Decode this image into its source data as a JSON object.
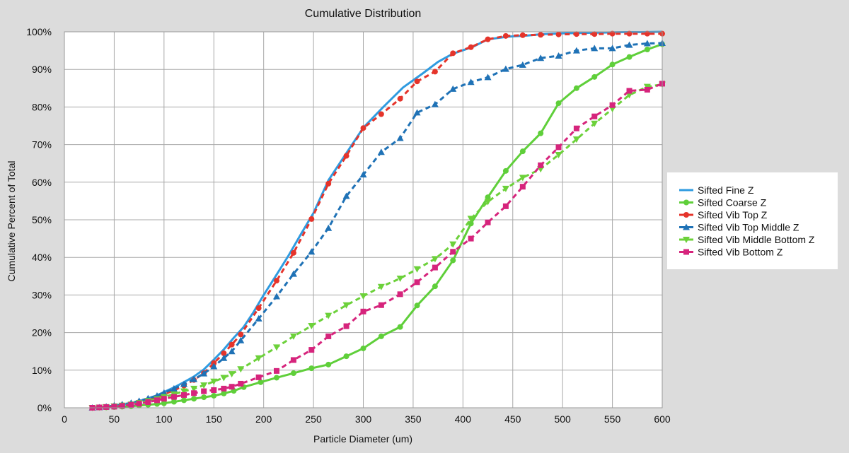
{
  "chart_data": {
    "type": "line",
    "title": "Cumulative Distribution",
    "xlabel": "Particle Diameter (um)",
    "ylabel": "Cumulative Percent of Total",
    "xlim": [
      0,
      600
    ],
    "ylim": [
      0,
      100
    ],
    "x_ticks": [
      0,
      50,
      100,
      150,
      200,
      250,
      300,
      350,
      400,
      450,
      500,
      550,
      600
    ],
    "x_tick_labels": [
      "0",
      "50",
      "100",
      "150",
      "200",
      "250",
      "300",
      "350",
      "400",
      "450",
      "500",
      "550",
      "600"
    ],
    "y_ticks": [
      0,
      10,
      20,
      30,
      40,
      50,
      60,
      70,
      80,
      90,
      100
    ],
    "y_tick_labels": [
      "0%",
      "10%",
      "20%",
      "30%",
      "40%",
      "50%",
      "60%",
      "70%",
      "80%",
      "90%",
      "100%"
    ],
    "grid": true,
    "legend_position": "right",
    "series": [
      {
        "name": "Sifted Fine Z",
        "color": "#2f9be0",
        "line_style": "solid",
        "marker": "none",
        "x": [
          28,
          35,
          42,
          50,
          58,
          67,
          75,
          84,
          93,
          100,
          110,
          120,
          130,
          140,
          150,
          160,
          170,
          180,
          190,
          200,
          212,
          225,
          237,
          250,
          265,
          280,
          300,
          320,
          340,
          360,
          375,
          390,
          410,
          425,
          445,
          465,
          480,
          500,
          520,
          540,
          560,
          580,
          600
        ],
        "y": [
          0,
          0.1,
          0.3,
          0.5,
          0.8,
          1.2,
          1.8,
          2.5,
          3.3,
          4.2,
          5.4,
          6.8,
          8.3,
          10.2,
          12.8,
          15.5,
          18.6,
          21.5,
          25.5,
          30,
          35,
          40.5,
          46,
          51.8,
          60.5,
          66.5,
          74.5,
          80,
          85.2,
          89,
          92,
          94.2,
          96,
          98,
          98.7,
          99,
          99.4,
          99.6,
          99.7,
          99.8,
          99.9,
          99.9,
          100
        ]
      },
      {
        "name": "Sifted Coarse Z",
        "color": "#5fcf3a",
        "line_style": "solid",
        "marker": "circle",
        "x": [
          28,
          35,
          42,
          50,
          58,
          67,
          75,
          84,
          93,
          100,
          110,
          120,
          130,
          140,
          150,
          160,
          170,
          180,
          197,
          213,
          230,
          248,
          265,
          283,
          300,
          318,
          337,
          354,
          372,
          390,
          408,
          425,
          443,
          460,
          478,
          496,
          514,
          532,
          550,
          567,
          585,
          600
        ],
        "y": [
          0,
          0.1,
          0.1,
          0.2,
          0.3,
          0.4,
          0.6,
          0.8,
          1,
          1.2,
          1.6,
          2,
          2.4,
          2.8,
          3.2,
          3.8,
          4.5,
          5.5,
          6.8,
          8,
          9.2,
          10.5,
          11.5,
          13.7,
          15.8,
          19,
          21.5,
          27.2,
          32.3,
          39.2,
          49,
          56,
          63,
          68.2,
          73,
          81,
          85,
          88,
          91.3,
          93.3,
          95.3,
          96.7
        ]
      },
      {
        "name": "Sifted Vib Top Z",
        "color": "#e5342b",
        "line_style": "dashed",
        "marker": "circle",
        "x": [
          28,
          35,
          42,
          50,
          58,
          67,
          75,
          84,
          93,
          100,
          110,
          120,
          130,
          140,
          150,
          160,
          168,
          177,
          195,
          213,
          230,
          248,
          265,
          283,
          300,
          318,
          337,
          354,
          372,
          390,
          408,
          425,
          443,
          460,
          478,
          496,
          514,
          532,
          550,
          567,
          585,
          600
        ],
        "y": [
          0,
          0.1,
          0.2,
          0.4,
          0.7,
          1,
          1.5,
          2.1,
          2.8,
          3.6,
          4.6,
          5.9,
          7.4,
          9.2,
          11.9,
          14.5,
          16.8,
          19.5,
          26.5,
          33.8,
          41.2,
          50.2,
          59.6,
          67,
          74.4,
          78.1,
          82.2,
          86.8,
          89.4,
          94.3,
          95.9,
          98,
          98.9,
          99.1,
          99.2,
          99.3,
          99.4,
          99.4,
          99.5,
          99.5,
          99.5,
          99.5
        ]
      },
      {
        "name": "Sifted Vib Top Middle Z",
        "color": "#1f72b6",
        "line_style": "dashed",
        "marker": "triangle-up",
        "x": [
          28,
          35,
          42,
          50,
          58,
          67,
          75,
          84,
          93,
          100,
          110,
          120,
          130,
          140,
          150,
          160,
          168,
          177,
          195,
          213,
          230,
          248,
          265,
          283,
          300,
          318,
          337,
          354,
          372,
          390,
          408,
          425,
          443,
          460,
          478,
          496,
          514,
          532,
          550,
          567,
          585,
          600
        ],
        "y": [
          0,
          0.1,
          0.3,
          0.6,
          0.9,
          1.3,
          1.8,
          2.5,
          3.2,
          4,
          5.1,
          6.3,
          7.6,
          9.1,
          11,
          13.2,
          15,
          17.9,
          23.7,
          29.6,
          35.6,
          41.5,
          47.8,
          56.3,
          62,
          68,
          71.7,
          78.5,
          80.7,
          84.8,
          86.6,
          87.9,
          90.1,
          91.2,
          93,
          93.6,
          95,
          95.6,
          95.6,
          96.5,
          96.9,
          97
        ]
      },
      {
        "name": "Sifted Vib Middle Bottom Z",
        "color": "#6cd13a",
        "line_style": "dashed",
        "marker": "triangle-down",
        "x": [
          28,
          35,
          42,
          50,
          58,
          67,
          75,
          84,
          93,
          100,
          110,
          120,
          130,
          140,
          150,
          160,
          168,
          177,
          195,
          213,
          230,
          248,
          265,
          283,
          300,
          318,
          337,
          354,
          372,
          390,
          408,
          425,
          443,
          460,
          478,
          496,
          514,
          532,
          550,
          567,
          585,
          600
        ],
        "y": [
          0,
          0.1,
          0.2,
          0.4,
          0.6,
          0.9,
          1.3,
          1.8,
          2.3,
          2.9,
          3.6,
          4.4,
          5.1,
          6,
          7,
          8,
          9,
          10.3,
          13.2,
          16.1,
          19,
          21.8,
          24.5,
          27.3,
          29.7,
          32.2,
          34.4,
          36.9,
          39.6,
          43.5,
          50.3,
          54.8,
          58.3,
          61.2,
          63.5,
          67.3,
          71.4,
          75.6,
          79.5,
          83.2,
          85.4,
          86
        ]
      },
      {
        "name": "Sifted Vib Bottom Z",
        "color": "#d6247c",
        "line_style": "dashed",
        "marker": "square",
        "x": [
          28,
          35,
          42,
          50,
          58,
          67,
          75,
          84,
          93,
          100,
          110,
          120,
          130,
          140,
          150,
          160,
          168,
          177,
          195,
          213,
          230,
          248,
          265,
          283,
          300,
          318,
          337,
          354,
          372,
          390,
          408,
          425,
          443,
          460,
          478,
          496,
          514,
          532,
          550,
          567,
          585,
          600
        ],
        "y": [
          0,
          0.1,
          0.2,
          0.3,
          0.5,
          0.8,
          1.1,
          1.5,
          2,
          2.4,
          2.9,
          3.4,
          3.9,
          4.4,
          4.7,
          5.1,
          5.6,
          6.4,
          8.1,
          9.8,
          12.7,
          15.4,
          19,
          21.7,
          25.6,
          27.3,
          30.2,
          33.4,
          37.3,
          41.5,
          45,
          49.3,
          53.6,
          58.8,
          64.5,
          69.3,
          74.3,
          77.5,
          80.5,
          84.3,
          84.6,
          86.2
        ]
      }
    ]
  }
}
